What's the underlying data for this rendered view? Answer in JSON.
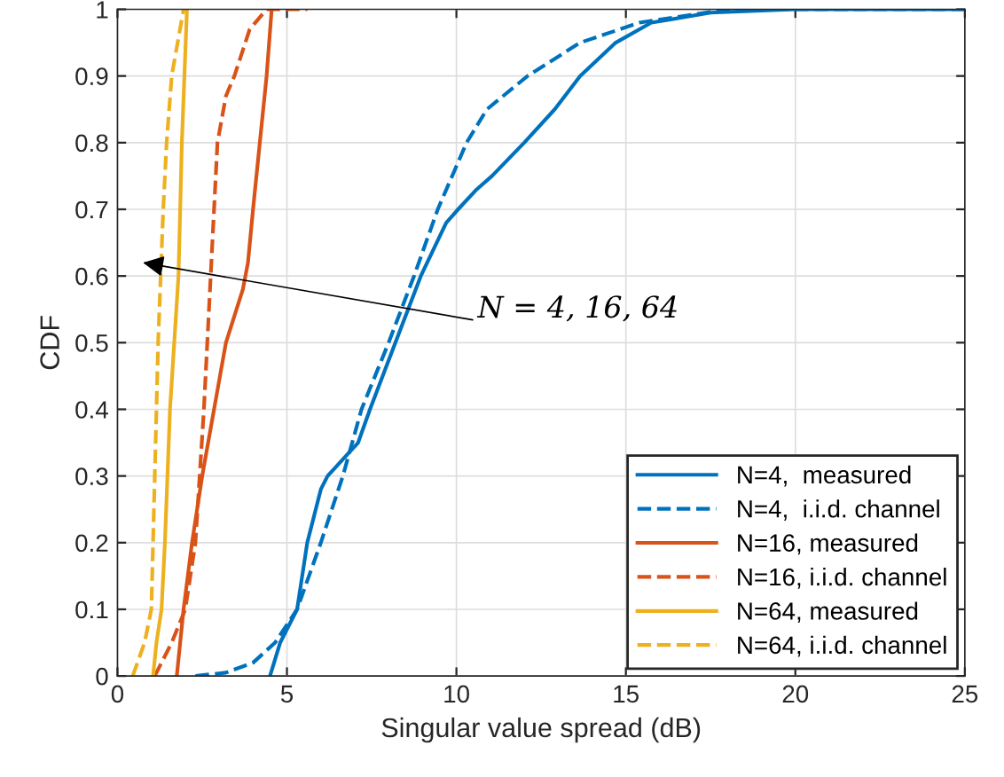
{
  "chart_data": {
    "type": "line",
    "xlabel": "Singular value spread (dB)",
    "ylabel": "CDF",
    "xlim": [
      0,
      25
    ],
    "ylim": [
      0,
      1
    ],
    "xticks": [
      0,
      5,
      10,
      15,
      20,
      25
    ],
    "yticks": [
      0,
      0.1,
      0.2,
      0.3,
      0.4,
      0.5,
      0.6,
      0.7,
      0.8,
      0.9,
      1
    ],
    "grid": true,
    "legend": "bottom right",
    "marker": "none",
    "annotations": [
      "N = 4, 16, 64"
    ],
    "series": [
      {
        "name": "N=4,  measured",
        "color": "#0072bd",
        "line_style": "solid",
        "x": [
          4.5,
          4.8,
          5.3,
          5.6,
          6.0,
          6.2,
          7.1,
          7.45,
          8.2,
          8.95,
          9.7,
          10.05,
          10.6,
          11.05,
          12.0,
          12.9,
          13.65,
          14.7,
          15.75,
          17.5,
          20,
          25
        ],
        "values": [
          0,
          0.05,
          0.1,
          0.2,
          0.28,
          0.3,
          0.35,
          0.4,
          0.5,
          0.6,
          0.68,
          0.7,
          0.73,
          0.75,
          0.8,
          0.85,
          0.9,
          0.95,
          0.98,
          0.995,
          1.0,
          1.0
        ]
      },
      {
        "name": "N=4,  i.i.d. channel",
        "color": "#0072bd",
        "line_style": "dashed",
        "x": [
          2.3,
          3.2,
          4.0,
          4.65,
          5.3,
          6.0,
          6.65,
          7.2,
          8.0,
          8.75,
          9.45,
          10.3,
          10.9,
          12.1,
          13.65,
          15.4,
          18,
          25
        ],
        "values": [
          0,
          0.005,
          0.02,
          0.05,
          0.1,
          0.2,
          0.3,
          0.4,
          0.5,
          0.6,
          0.7,
          0.8,
          0.85,
          0.9,
          0.95,
          0.98,
          1.0,
          1.0
        ]
      },
      {
        "name": "N=16, measured",
        "color": "#d95319",
        "line_style": "solid",
        "x": [
          1.75,
          1.95,
          2.2,
          2.5,
          2.85,
          3.2,
          3.7,
          3.85,
          4.0,
          4.2,
          4.4,
          4.55
        ],
        "values": [
          0,
          0.1,
          0.2,
          0.3,
          0.4,
          0.5,
          0.58,
          0.62,
          0.7,
          0.8,
          0.9,
          1.0
        ]
      },
      {
        "name": "N=16, i.i.d. channel",
        "color": "#d95319",
        "line_style": "dashed",
        "x": [
          1.1,
          1.6,
          2.0,
          2.3,
          2.55,
          2.75,
          2.95,
          3.2,
          3.45,
          3.9,
          4.4,
          5.6
        ],
        "values": [
          0,
          0.05,
          0.1,
          0.2,
          0.4,
          0.6,
          0.8,
          0.87,
          0.9,
          0.97,
          1.0,
          1.0
        ]
      },
      {
        "name": "N=64, measured",
        "color": "#edb120",
        "line_style": "solid",
        "x": [
          1.05,
          1.15,
          1.3,
          1.4,
          1.55,
          1.8,
          1.9,
          2.05
        ],
        "values": [
          0,
          0.05,
          0.1,
          0.2,
          0.4,
          0.6,
          0.8,
          1.0
        ]
      },
      {
        "name": "N=64, i.i.d. channel",
        "color": "#edb120",
        "line_style": "dashed",
        "x": [
          0.45,
          0.8,
          1.0,
          1.1,
          1.2,
          1.35,
          1.45,
          1.6,
          1.95
        ],
        "values": [
          0,
          0.05,
          0.1,
          0.3,
          0.5,
          0.7,
          0.8,
          0.9,
          1.0
        ]
      }
    ]
  }
}
